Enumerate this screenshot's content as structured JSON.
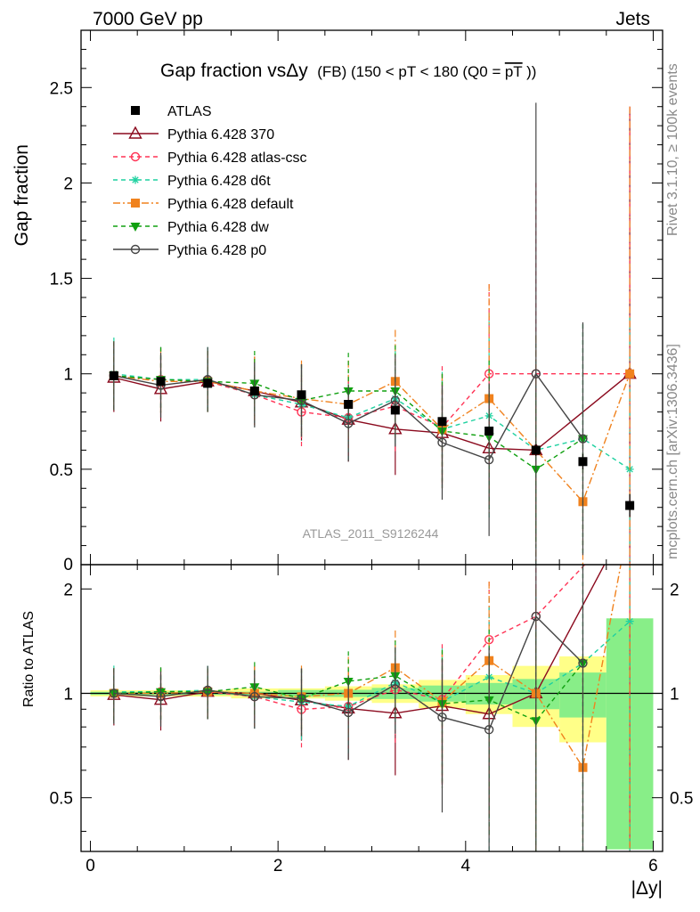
{
  "header": {
    "left": "7000 GeV pp",
    "right": "Jets",
    "side_rivet": "Rivet 3.1.10, ≥ 100k events",
    "side_mcplots": "mcplots.cern.ch [arXiv:1306.3436]",
    "analysis": "ATLAS_2011_S9126244"
  },
  "title": {
    "main": "Gap fraction vsΔy",
    "sub": "(FB)  (150 < pT < 180 (Q0 =",
    "pt": "pT",
    "close": "))"
  },
  "colors": {
    "ATLAS": "#000000",
    "370": "#8b0a1e",
    "atlas-csc": "#ff3355",
    "d6t": "#1fd1a0",
    "default": "#f0821e",
    "dw": "#10a010",
    "p0": "#444444",
    "band_inner": "#88ee88",
    "band_outer": "#ffff88"
  },
  "chart_data": {
    "type": "line",
    "x": [
      0.25,
      0.75,
      1.25,
      1.75,
      2.25,
      2.75,
      3.25,
      3.75,
      4.25,
      4.75,
      5.25,
      5.75
    ],
    "xlabel": "|Δy|",
    "xlim": [
      -0.1,
      6.1
    ],
    "xticks": [
      "0",
      "2",
      "4",
      "6"
    ],
    "top": {
      "ylabel": "Gap fraction",
      "ylim": [
        0,
        2.8
      ],
      "yticks": [
        "0.5",
        "1",
        "1.5",
        "2",
        "2.5"
      ]
    },
    "bottom": {
      "ylabel": "Ratio to ATLAS",
      "ylim": [
        0.35,
        2.35
      ],
      "yticks": [
        "0.5",
        "1",
        "2"
      ]
    },
    "data": {
      "name": "ATLAS",
      "values": [
        0.99,
        0.96,
        0.95,
        0.91,
        0.89,
        0.84,
        0.81,
        0.75,
        0.7,
        0.6,
        0.54,
        0.31
      ],
      "err": [
        0.01,
        0.01,
        0.01,
        0.01,
        0.01,
        0.01,
        0.01,
        0.02,
        0.02,
        0.03,
        0.04,
        0.06
      ],
      "band_inner": [
        0.01,
        0.01,
        0.01,
        0.01,
        0.02,
        0.02,
        0.03,
        0.04,
        0.05,
        0.06,
        0.08,
        0.2
      ],
      "band_outer": [
        0.02,
        0.02,
        0.02,
        0.03,
        0.03,
        0.04,
        0.05,
        0.07,
        0.09,
        0.12,
        0.15,
        0.4
      ]
    },
    "series": [
      {
        "name": "Pythia 6.428 370",
        "key": "370",
        "marker": "triangle",
        "dash": "",
        "values": [
          0.98,
          0.92,
          0.96,
          0.91,
          0.85,
          0.76,
          0.71,
          0.69,
          0.61,
          0.6,
          null,
          1.0
        ],
        "err": [
          0.18,
          0.17,
          0.16,
          0.18,
          0.2,
          0.22,
          0.24,
          0.28,
          0.3,
          0.45,
          null,
          1.4
        ]
      },
      {
        "name": "Pythia 6.428 atlas-csc",
        "key": "atlas-csc",
        "marker": "circle",
        "dash": "5,4",
        "values": [
          0.99,
          0.97,
          0.96,
          0.89,
          0.8,
          0.77,
          0.83,
          0.72,
          1.0,
          1.0,
          null,
          1.0
        ],
        "err": [
          0.18,
          0.17,
          0.16,
          0.17,
          0.18,
          0.2,
          0.25,
          0.32,
          0.47,
          1.0,
          null,
          1.4
        ]
      },
      {
        "name": "Pythia 6.428 d6t",
        "key": "d6t",
        "marker": "star",
        "dash": "5,4",
        "values": [
          1.0,
          0.97,
          0.97,
          0.89,
          0.84,
          0.77,
          0.87,
          0.71,
          0.78,
          0.6,
          0.66,
          0.5
        ],
        "err": [
          0.19,
          0.17,
          0.17,
          0.17,
          0.19,
          0.22,
          0.25,
          0.3,
          0.54,
          0.6,
          0.6,
          0.8
        ]
      },
      {
        "name": "Pythia 6.428 default",
        "key": "default",
        "marker": "square",
        "dash": "8,3,2,3",
        "values": [
          0.99,
          0.96,
          0.96,
          0.91,
          0.87,
          0.84,
          0.96,
          0.71,
          0.87,
          0.6,
          0.33,
          1.0
        ],
        "err": [
          0.18,
          0.17,
          0.16,
          0.18,
          0.2,
          0.23,
          0.27,
          0.29,
          0.6,
          0.6,
          0.33,
          1.4
        ]
      },
      {
        "name": "Pythia 6.428 dw",
        "key": "dw",
        "marker": "tridown",
        "dash": "5,4",
        "values": [
          0.99,
          0.97,
          0.96,
          0.95,
          0.86,
          0.91,
          0.91,
          0.7,
          0.67,
          0.5,
          0.66,
          null
        ],
        "err": [
          0.18,
          0.17,
          0.16,
          0.17,
          0.19,
          0.2,
          0.24,
          0.3,
          0.4,
          0.4,
          0.6,
          null
        ]
      },
      {
        "name": "Pythia 6.428 p0",
        "key": "p0",
        "marker": "circle",
        "dash": "",
        "values": [
          0.99,
          0.94,
          0.97,
          0.89,
          0.86,
          0.74,
          0.86,
          0.64,
          0.55,
          1.0,
          0.66,
          null
        ],
        "err": [
          0.18,
          0.17,
          0.17,
          0.17,
          0.19,
          0.2,
          0.24,
          0.3,
          0.4,
          1.42,
          0.61,
          null
        ]
      }
    ]
  }
}
